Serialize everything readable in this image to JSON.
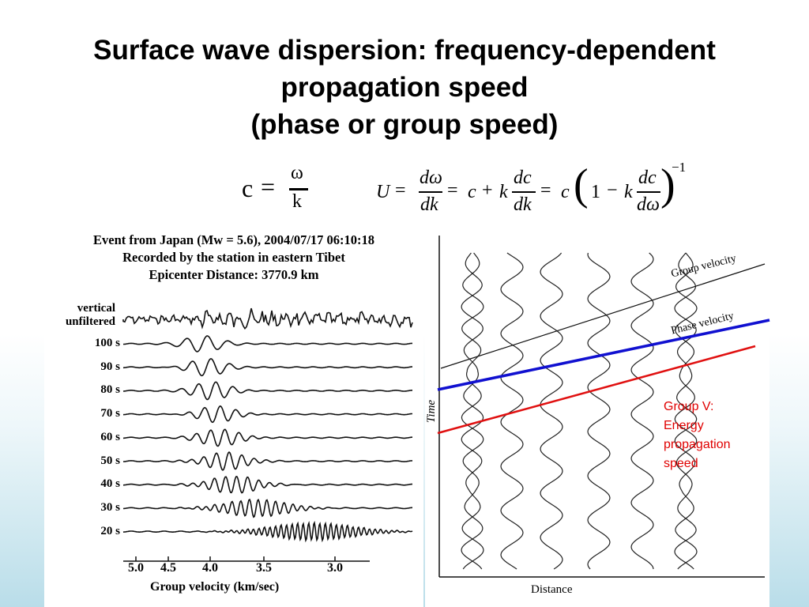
{
  "slide": {
    "title_lines": [
      "Surface wave dispersion: frequency-dependent",
      "propagation speed",
      "(phase or group speed)"
    ]
  },
  "equations": {
    "phase": {
      "lhs": "c",
      "eq": "=",
      "num": "ω",
      "den": "k"
    },
    "group": {
      "U": "U",
      "eq1": "=",
      "f1_num": "dω",
      "f1_den": "dk",
      "eq2": "=",
      "c1": "c",
      "plus": "+",
      "k1": "k",
      "f2_num": "dc",
      "f2_den": "dk",
      "eq3": "=",
      "c2": "c",
      "lparen": "(",
      "one": "1",
      "minus": "−",
      "k2": "k",
      "f3_num": "dc",
      "f3_den": "dω",
      "rparen": ")",
      "exp": "−1"
    }
  },
  "seismogram": {
    "header": [
      "Event from Japan (Mw = 5.6), 2004/07/17 06:10:18",
      "Recorded by the station in eastern Tibet",
      "Epicenter Distance: 3770.9 km"
    ],
    "raw_label": [
      "vertical",
      "unfiltered"
    ],
    "traces": [
      "100 s",
      "90 s",
      "80 s",
      "70 s",
      "60 s",
      "50 s",
      "40 s",
      "30 s",
      "20 s"
    ],
    "axis_ticks": [
      "5.0",
      "4.5",
      "4.0",
      "3.5",
      "3.0"
    ],
    "axis_title": "Group velocity (km/sec)"
  },
  "dispersion_diagram": {
    "x_label": "Distance",
    "y_label": "Time",
    "group_velocity_label": "Group velocity",
    "phase_velocity_label": "Phase velocity",
    "colors": {
      "phase_line": "#1010d0",
      "group_line": "#e01010"
    },
    "note": [
      "Group V:",
      "Energy",
      "propagation",
      "speed"
    ]
  }
}
